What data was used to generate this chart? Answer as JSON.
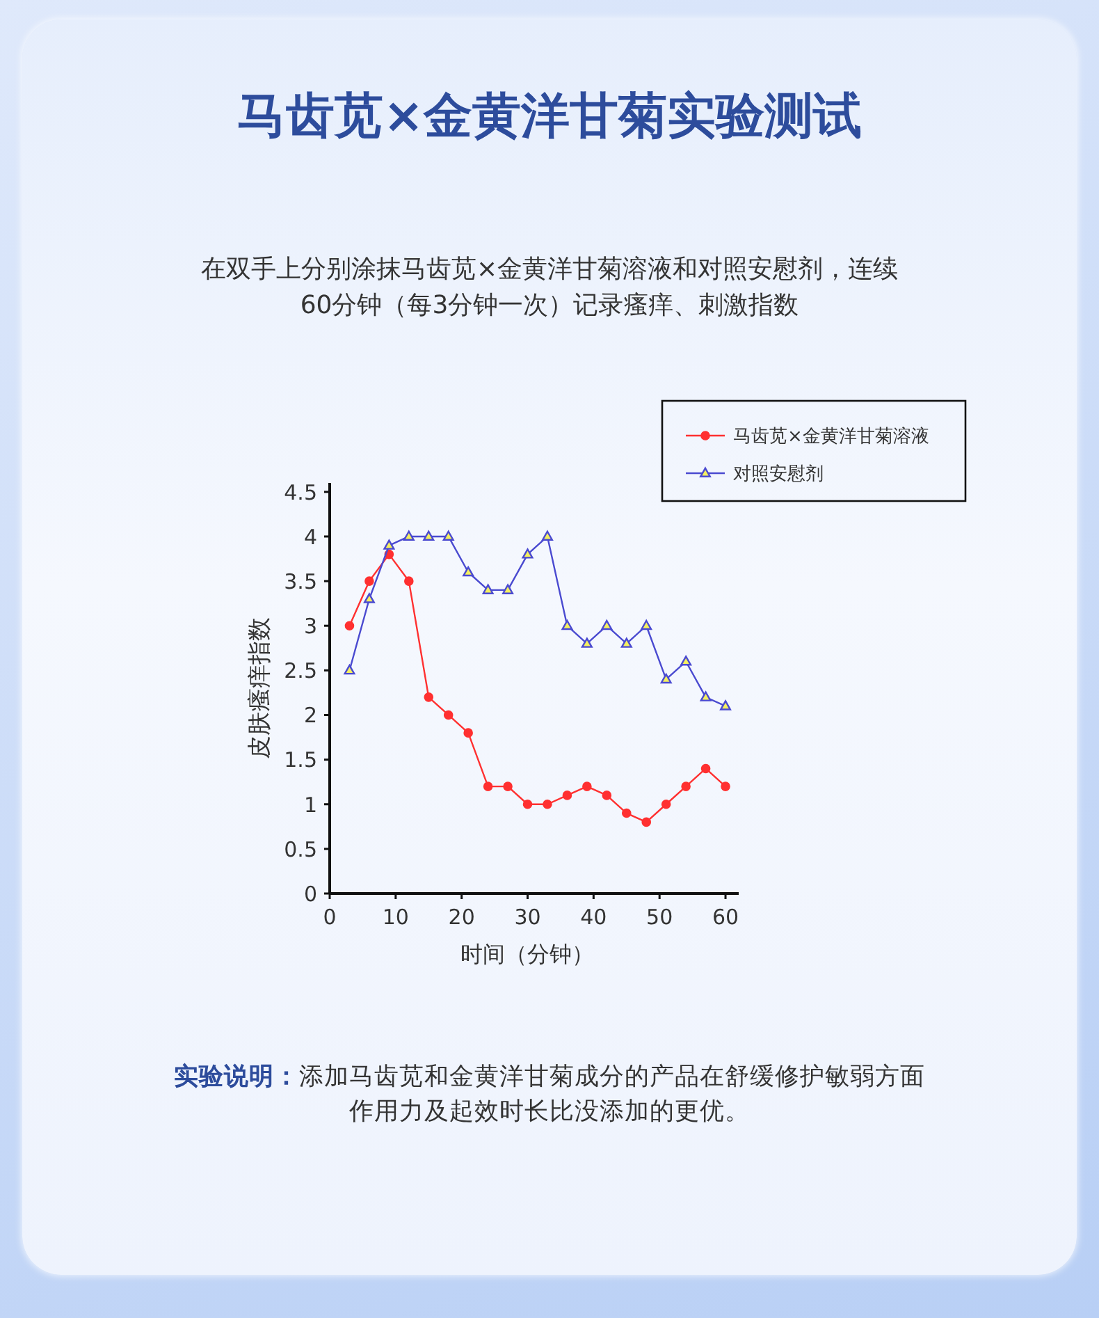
{
  "chart_data": {
    "type": "line",
    "title": "马齿苋×金黄洋甘菊实验测试",
    "subtitle": "在双手上分别涂抹马齿苋×金黄洋甘菊溶液和对照安慰剂，连续60分钟（每3分钟一次）记录瘙痒、刺激指数",
    "xlabel": "时间（分钟）",
    "ylabel": "皮肤瘙痒指数",
    "annotations": [
      "实验说明：",
      "添加马齿苋和金黄洋甘菊成分的产品在舒缓修护敏弱方面作用力及起效时长比没添加的更优。"
    ],
    "x": [
      3,
      6,
      9,
      12,
      15,
      18,
      21,
      24,
      27,
      30,
      33,
      36,
      39,
      42,
      45,
      48,
      51,
      54,
      57,
      60
    ],
    "xlim": [
      0,
      62
    ],
    "xticks": [
      0,
      10,
      20,
      30,
      40,
      50,
      60
    ],
    "ylim": [
      0,
      4.6
    ],
    "yticks": [
      0,
      0.5,
      1,
      1.5,
      2,
      2.5,
      3,
      3.5,
      4,
      4.5
    ],
    "legend": "top right",
    "series": [
      {
        "name": "马齿苋×金黄洋甘菊溶液",
        "color": "#ff3030",
        "marker": "circle",
        "values": [
          3.0,
          3.5,
          3.8,
          3.5,
          2.2,
          2.0,
          1.8,
          1.2,
          1.2,
          1.0,
          1.0,
          1.1,
          1.2,
          1.1,
          0.9,
          0.8,
          1.0,
          1.2,
          1.4,
          1.2
        ]
      },
      {
        "name": "对照安慰剂",
        "color": "#4a4ad0",
        "marker": "triangle",
        "values": [
          2.5,
          3.3,
          3.9,
          4.0,
          4.0,
          4.0,
          3.6,
          3.4,
          3.4,
          3.8,
          4.0,
          3.0,
          2.8,
          3.0,
          2.8,
          3.0,
          2.4,
          2.6,
          2.2,
          2.1
        ]
      }
    ]
  }
}
